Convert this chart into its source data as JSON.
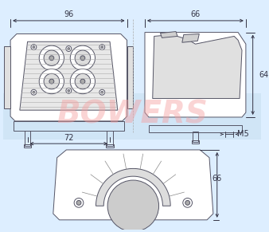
{
  "bg_color": "#ddeeff",
  "line_color": "#555566",
  "dim_color": "#333344",
  "watermark_text": "BOWERS",
  "watermark_color": "#f5a0a0",
  "watermark_alpha": 0.45,
  "dim_96": "96",
  "dim_66_top": "66",
  "dim_64": "64",
  "dim_72": "72",
  "dim_m5": "M5",
  "dim_66_bot": "66",
  "font_size": 7
}
